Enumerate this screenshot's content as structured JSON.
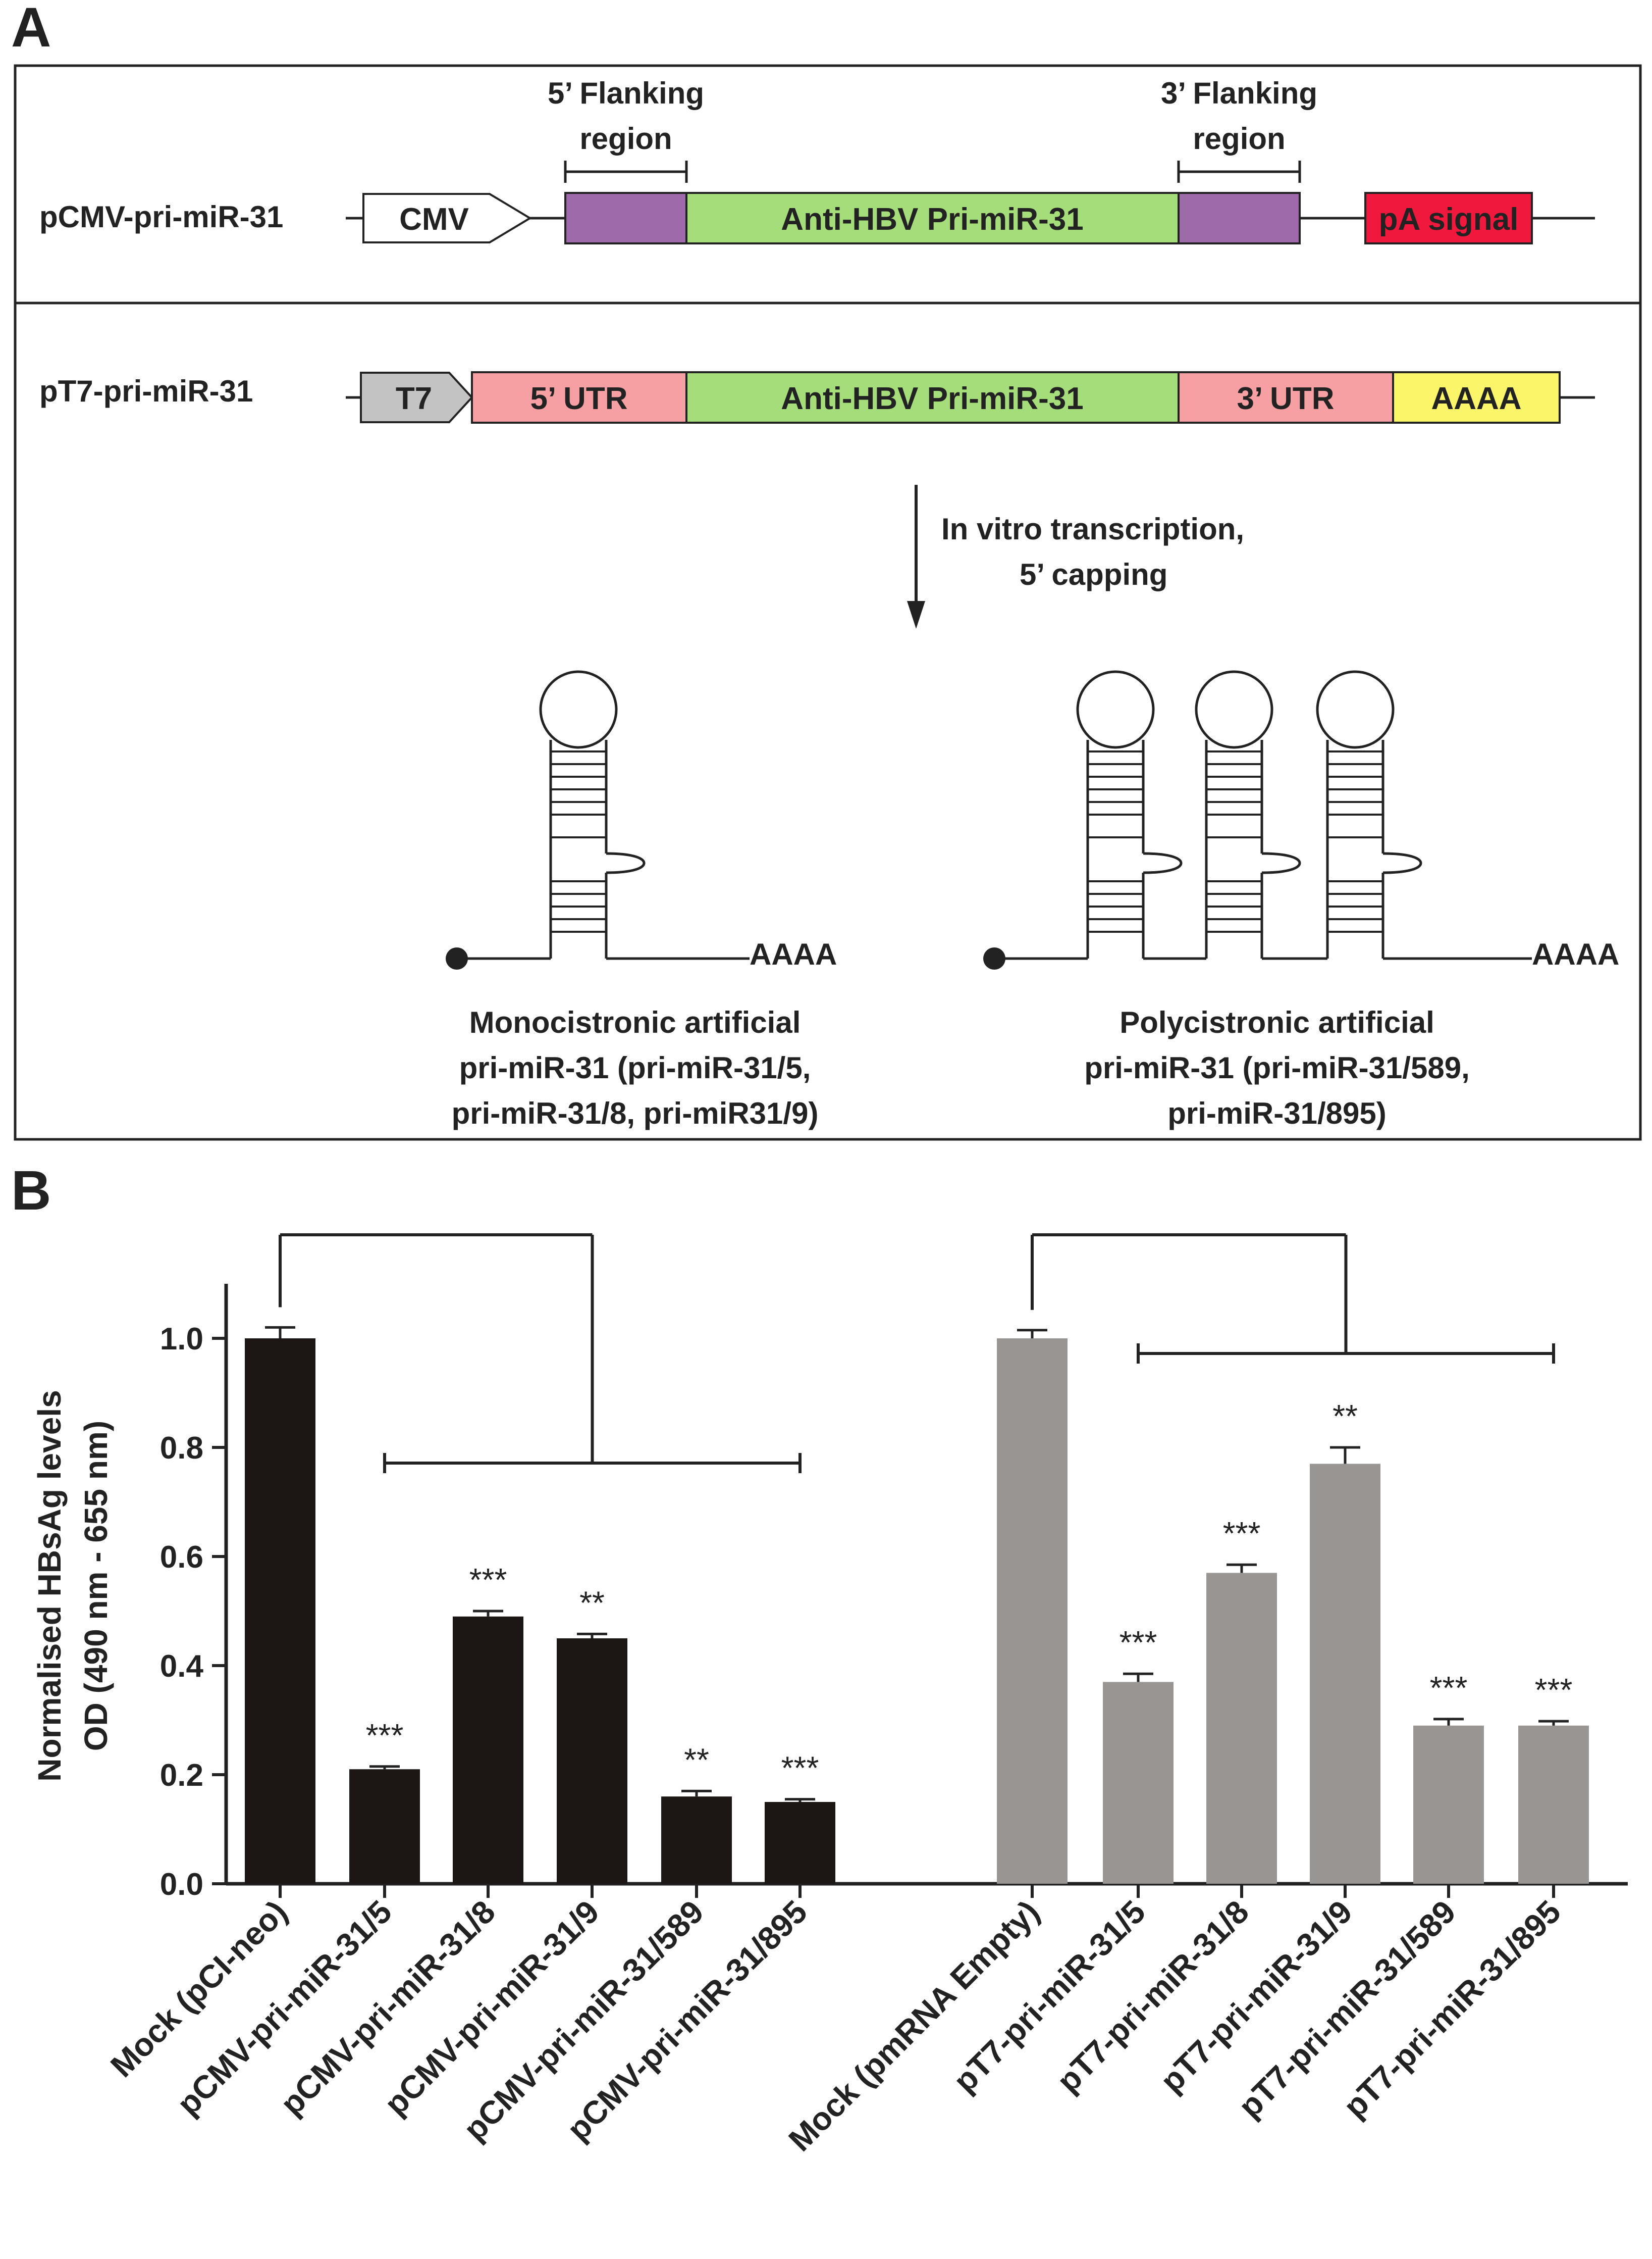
{
  "panel_a": {
    "label": "A",
    "construct1": {
      "name": "pCMV-pri-miR-31",
      "promoter": "CMV",
      "flank5_title": [
        "5’ Flanking",
        "region"
      ],
      "flank3_title": [
        "3’ Flanking",
        "region"
      ],
      "insert": "Anti-HBV Pri-miR-31",
      "pa": "pA signal"
    },
    "construct2": {
      "name": "pT7-pri-miR-31",
      "promoter": "T7",
      "utr5": "5’ UTR",
      "insert": "Anti-HBV Pri-miR-31",
      "utr3": "3’ UTR",
      "polya": "AAAA"
    },
    "process": [
      "In vitro transcription,",
      "5’ capping"
    ],
    "mono": {
      "tail": "AAAA",
      "caption": [
        "Monocistronic artificial",
        "pri-miR-31 (pri-miR-31/5,",
        "pri-miR-31/8, pri-miR31/9)"
      ]
    },
    "poly": {
      "tail": "AAAA",
      "caption": [
        "Polycistronic artificial",
        "pri-miR-31 (pri-miR-31/589,",
        "pri-miR-31/895)"
      ]
    }
  },
  "panel_b": {
    "label": "B"
  },
  "colors": {
    "cmv_bars": "#1c1715",
    "t7_bars": "#989593",
    "flank": "#9f6aa9",
    "insert": "#a6dd7b",
    "pa": "#f0183c",
    "utr": "#f7a0a4",
    "polya": "#fbf56a",
    "t7_box": "#c3c3c3"
  },
  "chart_data": {
    "type": "bar",
    "ylabel": [
      "Normalised HBsAg levels",
      "OD (490 nm - 655 nm)"
    ],
    "ylim": [
      0,
      1.1
    ],
    "yticks": [
      "0.0",
      "0.2",
      "0.4",
      "0.6",
      "0.8",
      "1.0"
    ],
    "groups": [
      {
        "name": "CMV",
        "categories": [
          "Mock (pCI-neo)",
          "pCMV-pri-miR-31/5",
          "pCMV-pri-miR-31/8",
          "pCMV-pri-miR-31/9",
          "pCMV-pri-miR-31/589",
          "pCMV-pri-miR-31/895"
        ],
        "values": [
          1.0,
          0.21,
          0.49,
          0.45,
          0.16,
          0.15
        ],
        "errors": [
          0.02,
          0.005,
          0.01,
          0.008,
          0.01,
          0.005
        ],
        "significance": [
          "",
          "***",
          "***",
          "**",
          "**",
          "***"
        ]
      },
      {
        "name": "T7",
        "categories": [
          "Mock (pmRNA Empty)",
          "pT7-pri-miR-31/5",
          "pT7-pri-miR-31/8",
          "pT7-pri-miR-31/9",
          "pT7-pri-miR-31/589",
          "pT7-pri-miR-31/895"
        ],
        "values": [
          1.0,
          0.37,
          0.57,
          0.77,
          0.29,
          0.29
        ],
        "errors": [
          0.015,
          0.015,
          0.015,
          0.03,
          0.012,
          0.008
        ],
        "significance": [
          "",
          "***",
          "***",
          "**",
          "***",
          "***"
        ]
      }
    ]
  }
}
